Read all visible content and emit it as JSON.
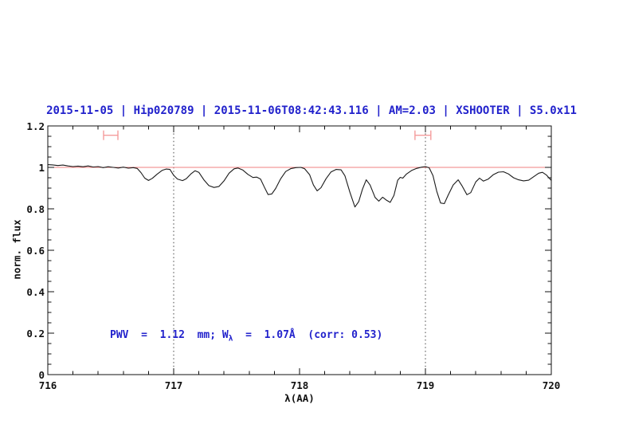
{
  "header": {
    "title": "2015-11-05 | Hip020789 | 2015-11-06T08:42:43.116 | AM=2.03 | XSHOOTER | S5.0x11"
  },
  "annotation": {
    "part1": "PWV  =  1.12  mm; W",
    "sub": "λ",
    "part2": "  =  1.07Å  (corr: 0.53)"
  },
  "chart_data": {
    "type": "line",
    "title": "2015-11-05 | Hip020789 | 2015-11-06T08:42:43.116 | AM=2.03 | XSHOOTER | S5.0x11",
    "xlabel": "λ(AA)",
    "ylabel": "norm. flux",
    "xlim": [
      716,
      720
    ],
    "ylim": [
      0,
      1.2
    ],
    "grid": false,
    "x_major_ticks": [
      716,
      717,
      718,
      719,
      720
    ],
    "x_tick_labels": [
      "716",
      "717",
      "718",
      "719",
      "720"
    ],
    "x_minor_step": 0.2,
    "y_major_ticks": [
      0,
      0.2,
      0.4,
      0.6,
      0.8,
      1,
      1.2
    ],
    "y_tick_labels": [
      "1.2",
      "1",
      "0.8",
      "0.6",
      "0.4",
      "0.2",
      "0"
    ],
    "y_minor_step": 0.05,
    "dotted_guides_x": [
      717,
      719
    ],
    "continuum_y": 1.0,
    "colors": {
      "curve": "#1a1a1a",
      "continuum": "#f08080",
      "marker": "#f49c9c",
      "guide": "#444444",
      "frame": "#111111",
      "text_blue": "#2222cc"
    },
    "markers": [
      {
        "x_center": 716.5,
        "x_halfwidth": 0.057,
        "y": 1.155
      },
      {
        "x_center": 718.98,
        "x_halfwidth": 0.063,
        "y": 1.155
      }
    ],
    "series": [
      {
        "name": "normalized telluric spectrum",
        "points": [
          [
            716.0,
            1.013
          ],
          [
            716.04,
            1.012
          ],
          [
            716.08,
            1.009
          ],
          [
            716.12,
            1.011
          ],
          [
            716.16,
            1.007
          ],
          [
            716.2,
            1.004
          ],
          [
            716.24,
            1.006
          ],
          [
            716.28,
            1.003
          ],
          [
            716.32,
            1.007
          ],
          [
            716.36,
            1.002
          ],
          [
            716.4,
            1.004
          ],
          [
            716.44,
            0.999
          ],
          [
            716.48,
            1.003
          ],
          [
            716.52,
            1.0
          ],
          [
            716.56,
            0.997
          ],
          [
            716.6,
            1.001
          ],
          [
            716.64,
            0.996
          ],
          [
            716.68,
            0.999
          ],
          [
            716.71,
            0.995
          ],
          [
            716.74,
            0.975
          ],
          [
            716.77,
            0.948
          ],
          [
            716.8,
            0.937
          ],
          [
            716.83,
            0.947
          ],
          [
            716.87,
            0.968
          ],
          [
            716.91,
            0.986
          ],
          [
            716.94,
            0.992
          ],
          [
            716.97,
            0.99
          ],
          [
            717.0,
            0.962
          ],
          [
            717.03,
            0.944
          ],
          [
            717.07,
            0.936
          ],
          [
            717.1,
            0.945
          ],
          [
            717.14,
            0.97
          ],
          [
            717.17,
            0.984
          ],
          [
            717.2,
            0.976
          ],
          [
            717.24,
            0.94
          ],
          [
            717.28,
            0.912
          ],
          [
            717.32,
            0.903
          ],
          [
            717.36,
            0.908
          ],
          [
            717.4,
            0.935
          ],
          [
            717.44,
            0.972
          ],
          [
            717.48,
            0.993
          ],
          [
            717.51,
            0.997
          ],
          [
            717.55,
            0.987
          ],
          [
            717.59,
            0.966
          ],
          [
            717.63,
            0.951
          ],
          [
            717.66,
            0.953
          ],
          [
            717.69,
            0.944
          ],
          [
            717.72,
            0.905
          ],
          [
            717.75,
            0.869
          ],
          [
            717.78,
            0.872
          ],
          [
            717.81,
            0.898
          ],
          [
            717.85,
            0.945
          ],
          [
            717.89,
            0.98
          ],
          [
            717.93,
            0.994
          ],
          [
            717.97,
            0.999
          ],
          [
            718.01,
            1.0
          ],
          [
            718.04,
            0.994
          ],
          [
            718.08,
            0.965
          ],
          [
            718.11,
            0.915
          ],
          [
            718.14,
            0.887
          ],
          [
            718.17,
            0.902
          ],
          [
            718.21,
            0.945
          ],
          [
            718.25,
            0.978
          ],
          [
            718.29,
            0.99
          ],
          [
            718.33,
            0.988
          ],
          [
            718.36,
            0.96
          ],
          [
            718.4,
            0.88
          ],
          [
            718.44,
            0.809
          ],
          [
            718.47,
            0.835
          ],
          [
            718.5,
            0.895
          ],
          [
            718.53,
            0.94
          ],
          [
            718.56,
            0.915
          ],
          [
            718.6,
            0.855
          ],
          [
            718.63,
            0.837
          ],
          [
            718.66,
            0.856
          ],
          [
            718.69,
            0.842
          ],
          [
            718.72,
            0.831
          ],
          [
            718.75,
            0.865
          ],
          [
            718.78,
            0.938
          ],
          [
            718.8,
            0.952
          ],
          [
            718.82,
            0.948
          ],
          [
            718.85,
            0.968
          ],
          [
            718.89,
            0.985
          ],
          [
            718.93,
            0.995
          ],
          [
            718.97,
            1.001
          ],
          [
            719.0,
            1.004
          ],
          [
            719.03,
            0.998
          ],
          [
            719.06,
            0.96
          ],
          [
            719.09,
            0.885
          ],
          [
            719.12,
            0.828
          ],
          [
            719.15,
            0.825
          ],
          [
            719.18,
            0.865
          ],
          [
            719.22,
            0.915
          ],
          [
            719.26,
            0.94
          ],
          [
            719.29,
            0.912
          ],
          [
            719.33,
            0.868
          ],
          [
            719.36,
            0.878
          ],
          [
            719.4,
            0.93
          ],
          [
            719.43,
            0.948
          ],
          [
            719.46,
            0.934
          ],
          [
            719.5,
            0.944
          ],
          [
            719.54,
            0.965
          ],
          [
            719.58,
            0.977
          ],
          [
            719.62,
            0.979
          ],
          [
            719.66,
            0.968
          ],
          [
            719.7,
            0.95
          ],
          [
            719.74,
            0.94
          ],
          [
            719.78,
            0.935
          ],
          [
            719.82,
            0.938
          ],
          [
            719.86,
            0.955
          ],
          [
            719.9,
            0.972
          ],
          [
            719.93,
            0.976
          ],
          [
            719.96,
            0.964
          ],
          [
            720.0,
            0.937
          ]
        ]
      }
    ]
  }
}
